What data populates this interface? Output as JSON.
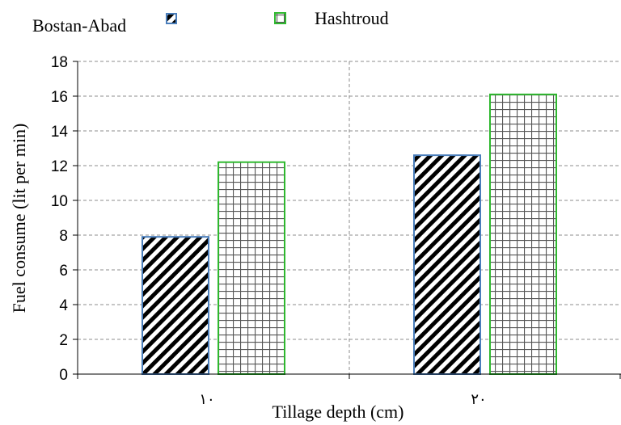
{
  "chart_data": {
    "type": "bar",
    "categories": [
      "١٠",
      "٢٠"
    ],
    "series": [
      {
        "name": "Bostan-Abad",
        "values": [
          7.9,
          12.6
        ],
        "color": "#4a7ebb",
        "pattern": "diagonal-hatch"
      },
      {
        "name": "Hashtroud",
        "values": [
          12.2,
          16.1
        ],
        "color": "#2eb82e",
        "pattern": "grid"
      }
    ],
    "title": "",
    "xlabel": "Tillage depth (cm)",
    "ylabel": "Fuel consume (lit per min)",
    "ylim": [
      0,
      18
    ],
    "yticks": [
      "0",
      "2",
      "4",
      "6",
      "8",
      "10",
      "12",
      "14",
      "16",
      "18"
    ],
    "grid": "dashed horizontal",
    "legend_position": "top"
  }
}
